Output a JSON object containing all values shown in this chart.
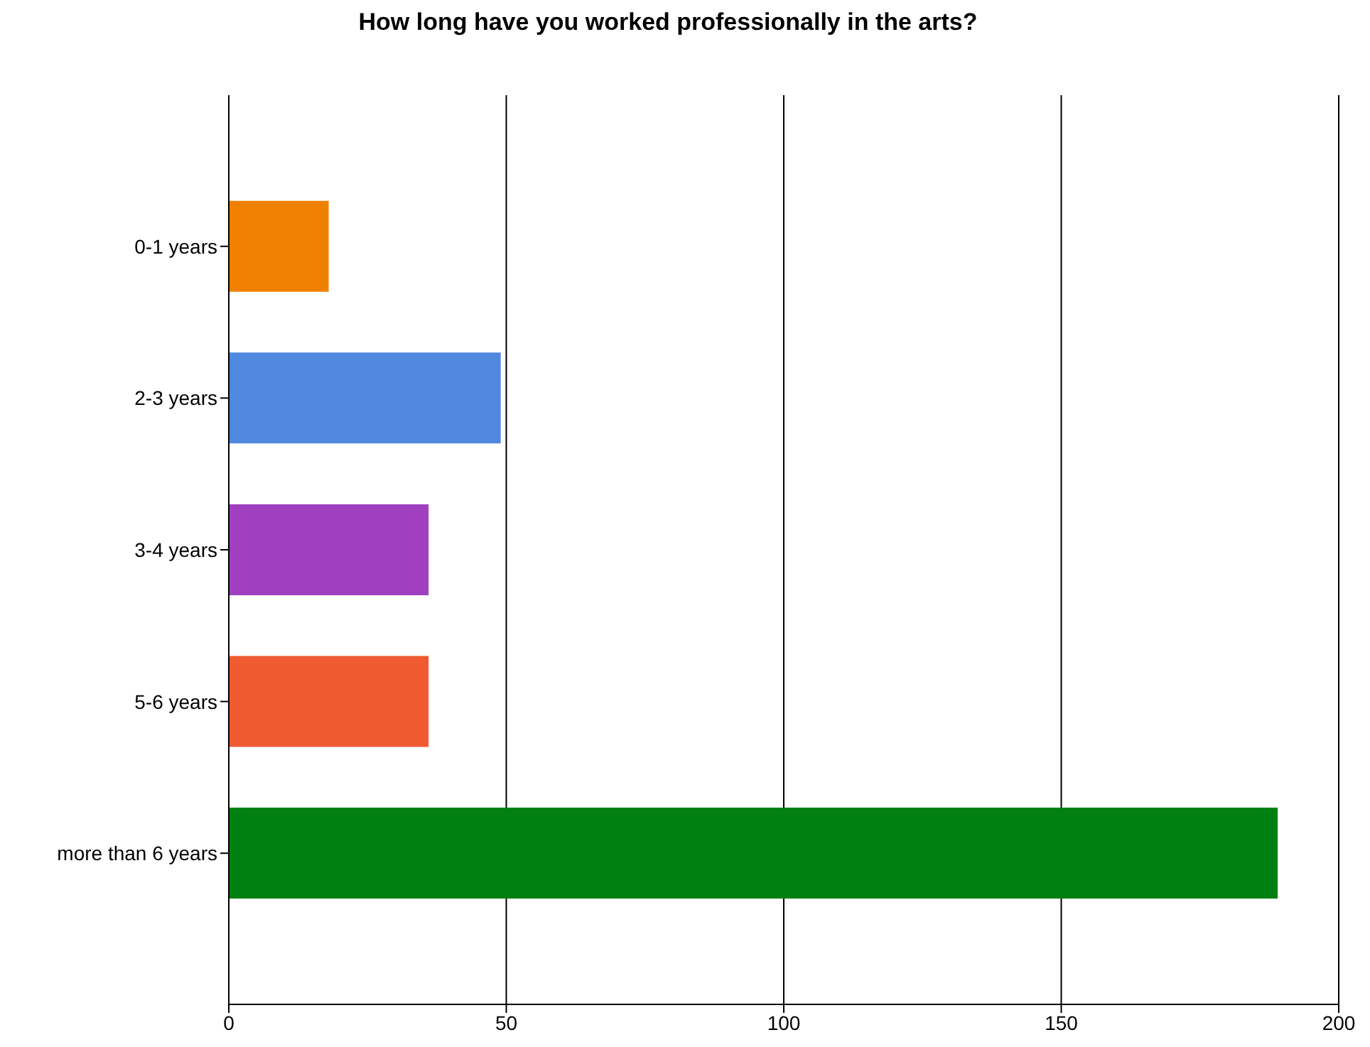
{
  "chart_data": {
    "type": "bar",
    "orientation": "horizontal",
    "title": "How long have you worked professionally in the arts?",
    "categories": [
      "0-1 years",
      "2-3 years",
      "3-4 years",
      "5-6 years",
      "more than 6 years"
    ],
    "values": [
      18,
      49,
      36,
      36,
      189
    ],
    "colors": [
      "#f08000",
      "#5088e0",
      "#a040c0",
      "#f05a30",
      "#008010"
    ],
    "xlim": [
      0,
      200
    ],
    "xticks": [
      0,
      50,
      100,
      150,
      200
    ],
    "grid": "x"
  }
}
